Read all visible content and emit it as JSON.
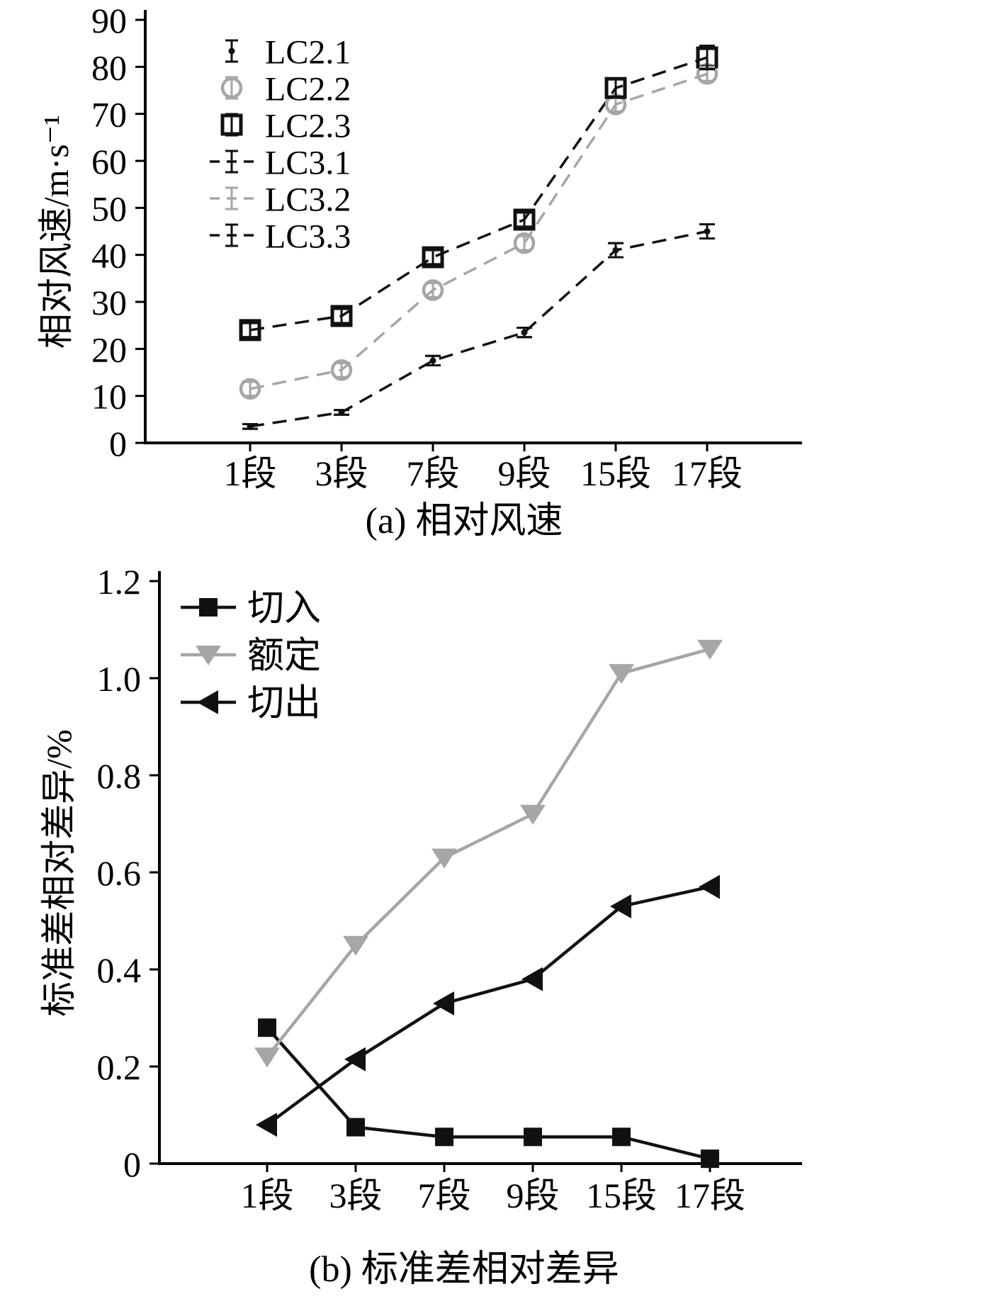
{
  "figure": {
    "background": "#ffffff",
    "colors": {
      "black": "#111111",
      "gray": "#a6a6a6"
    }
  },
  "chart_data": [
    {
      "type": "line",
      "title": "(a) 相对风速",
      "ylabel": "相对风速/m·s⁻¹",
      "xlabel": "",
      "categories": [
        "1段",
        "3段",
        "7段",
        "9段",
        "15段",
        "17段"
      ],
      "ylim": [
        0,
        90
      ],
      "ytick_step": 10,
      "ytick_decimals": 0,
      "grid": false,
      "legend_position": "top-left",
      "series": [
        {
          "name": "LC2.1",
          "marker": "dot",
          "line": "none",
          "color": "#111111",
          "values": [
            3.5,
            6.5,
            17.5,
            23.5,
            41,
            45
          ],
          "errors": [
            0.5,
            0.5,
            1,
            1,
            1.5,
            1.5
          ]
        },
        {
          "name": "LC2.2",
          "marker": "circle",
          "line": "none",
          "color": "#a6a6a6",
          "values": [
            11.5,
            15.5,
            32.5,
            42.5,
            72,
            78.5
          ],
          "errors": [
            1.5,
            1.5,
            1.5,
            1.5,
            1.5,
            1.5
          ]
        },
        {
          "name": "LC2.3",
          "marker": "square",
          "line": "none",
          "color": "#111111",
          "values": [
            24,
            27,
            39.5,
            47.5,
            75.5,
            82
          ],
          "errors": [
            1.5,
            1.5,
            1.5,
            1.5,
            2,
            2.5
          ]
        },
        {
          "name": "LC3.1",
          "marker": "errorbar",
          "line": "dashed",
          "color": "#111111",
          "values": [
            3.5,
            6.5,
            17.5,
            23.5,
            41,
            45
          ],
          "errors": [
            0.5,
            0.5,
            1,
            1,
            1.5,
            1.5
          ]
        },
        {
          "name": "LC3.2",
          "marker": "errorbar",
          "line": "dashed",
          "color": "#a6a6a6",
          "values": [
            11.5,
            15.5,
            32.5,
            42.5,
            72,
            78.5
          ],
          "errors": [
            1.5,
            1.5,
            1.5,
            1.5,
            1.5,
            1.5
          ]
        },
        {
          "name": "LC3.3",
          "marker": "errorbar",
          "line": "dashed",
          "color": "#111111",
          "values": [
            24,
            27,
            39.5,
            47.5,
            75.5,
            82
          ],
          "errors": [
            1.5,
            1.5,
            1.5,
            1.5,
            2,
            2.5
          ]
        }
      ]
    },
    {
      "type": "line",
      "title": "(b) 标准差相对差异",
      "ylabel": "标准差相对差异/%",
      "xlabel": "",
      "categories": [
        "1段",
        "3段",
        "7段",
        "9段",
        "15段",
        "17段"
      ],
      "ylim": [
        0,
        1.2
      ],
      "ytick_step": 0.2,
      "ytick_decimals": 1,
      "grid": false,
      "legend_position": "top-left",
      "series": [
        {
          "name": "切入",
          "marker": "square-filled",
          "line": "solid",
          "color": "#111111",
          "values": [
            0.28,
            0.075,
            0.055,
            0.055,
            0.055,
            0.01
          ]
        },
        {
          "name": "额定",
          "marker": "triangle-down",
          "line": "solid",
          "color": "#a6a6a6",
          "values": [
            0.22,
            0.45,
            0.63,
            0.72,
            1.01,
            1.06
          ]
        },
        {
          "name": "切出",
          "marker": "triangle-left",
          "line": "solid",
          "color": "#111111",
          "values": [
            0.08,
            0.215,
            0.33,
            0.38,
            0.53,
            0.57
          ]
        }
      ]
    }
  ]
}
